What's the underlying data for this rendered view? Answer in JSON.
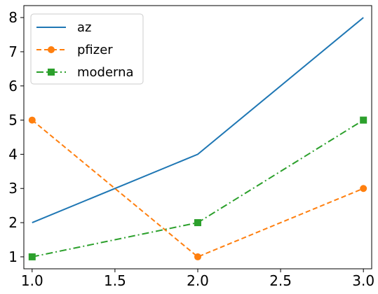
{
  "chart_data": {
    "type": "line",
    "title": "",
    "xlabel": "",
    "ylabel": "",
    "xlim": [
      0.95,
      3.05
    ],
    "ylim": [
      0.65,
      8.35
    ],
    "xticks": [
      1.0,
      1.5,
      2.0,
      2.5,
      3.0
    ],
    "xtick_labels": [
      "1.0",
      "1.5",
      "2.0",
      "2.5",
      "3.0"
    ],
    "yticks": [
      1,
      2,
      3,
      4,
      5,
      6,
      7,
      8
    ],
    "ytick_labels": [
      "1",
      "2",
      "3",
      "4",
      "5",
      "6",
      "7",
      "8"
    ],
    "grid": false,
    "legend_position": "top-left",
    "x": [
      1.0,
      2.0,
      3.0
    ],
    "series": [
      {
        "name": "az",
        "values": [
          2,
          4,
          8
        ],
        "color": "#1f77b4",
        "linestyle": "solid",
        "marker": "none"
      },
      {
        "name": "pfizer",
        "values": [
          5,
          1,
          3
        ],
        "color": "#ff7f0e",
        "linestyle": "dashed",
        "marker": "circle"
      },
      {
        "name": "moderna",
        "values": [
          1,
          2,
          5
        ],
        "color": "#2ca02c",
        "linestyle": "dashdot",
        "marker": "square"
      }
    ]
  }
}
